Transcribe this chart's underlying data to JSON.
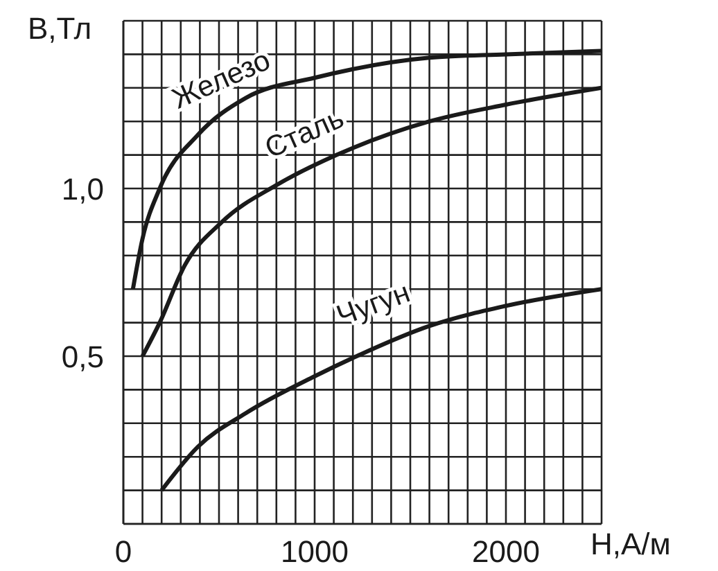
{
  "chart_data": {
    "type": "line",
    "xlabel": "H,А/м",
    "ylabel": "B,Тл",
    "xlim": [
      0,
      2500
    ],
    "ylim": [
      0,
      1.5
    ],
    "xticks": [
      0,
      {
        "value": 100,
        "label": null
      },
      {
        "value": 200,
        "label": null
      },
      {
        "value": 300,
        "label": null
      },
      {
        "value": 400,
        "label": null
      },
      {
        "value": 500,
        "label": null
      },
      {
        "value": 600,
        "label": null
      },
      {
        "value": 700,
        "label": null
      },
      {
        "value": 800,
        "label": null
      },
      {
        "value": 900,
        "label": null
      },
      1000,
      {
        "value": 1100,
        "label": null
      },
      {
        "value": 1200,
        "label": null
      },
      {
        "value": 1300,
        "label": null
      },
      {
        "value": 1400,
        "label": null
      },
      {
        "value": 1500,
        "label": null
      },
      {
        "value": 1600,
        "label": null
      },
      {
        "value": 1700,
        "label": null
      },
      {
        "value": 1800,
        "label": null
      },
      {
        "value": 1900,
        "label": null
      },
      2000,
      {
        "value": 2100,
        "label": null
      },
      {
        "value": 2200,
        "label": null
      },
      {
        "value": 2300,
        "label": null
      },
      {
        "value": 2400,
        "label": null
      },
      {
        "value": 2500,
        "label": null
      }
    ],
    "yticks": [
      {
        "value": 0,
        "label": null
      },
      {
        "value": 0.1,
        "label": null
      },
      {
        "value": 0.2,
        "label": null
      },
      {
        "value": 0.3,
        "label": null
      },
      {
        "value": 0.4,
        "label": null
      },
      {
        "value": 0.5,
        "label": "0,5"
      },
      {
        "value": 0.6,
        "label": null
      },
      {
        "value": 0.7,
        "label": null
      },
      {
        "value": 0.8,
        "label": null
      },
      {
        "value": 0.9,
        "label": null
      },
      {
        "value": 1.0,
        "label": "1,0"
      },
      {
        "value": 1.1,
        "label": null
      },
      {
        "value": 1.2,
        "label": null
      },
      {
        "value": 1.3,
        "label": null
      },
      {
        "value": 1.4,
        "label": null
      },
      {
        "value": 1.5,
        "label": null
      }
    ],
    "grid": true,
    "marker": "none",
    "line_style": "solid",
    "series": [
      {
        "name": "Железо",
        "color": "#1a1a1a",
        "x": [
          50,
          100,
          190,
          390,
          640,
          1000,
          1600,
          2000,
          2500
        ],
        "values": [
          0.7,
          0.85,
          1.0,
          1.16,
          1.27,
          1.33,
          1.39,
          1.4,
          1.41
        ]
      },
      {
        "name": "Сталь",
        "color": "#1a1a1a",
        "x": [
          100,
          190,
          320,
          515,
          800,
          1115,
          1600,
          2000,
          2500
        ],
        "values": [
          0.5,
          0.6,
          0.77,
          0.9,
          1.01,
          1.1,
          1.2,
          1.25,
          1.3
        ]
      },
      {
        "name": "Чугун",
        "color": "#1a1a1a",
        "x": [
          200,
          390,
          640,
          1000,
          1220,
          1600,
          2000,
          2500
        ],
        "values": [
          0.1,
          0.23,
          0.33,
          0.44,
          0.5,
          0.59,
          0.65,
          0.7
        ]
      }
    ]
  }
}
